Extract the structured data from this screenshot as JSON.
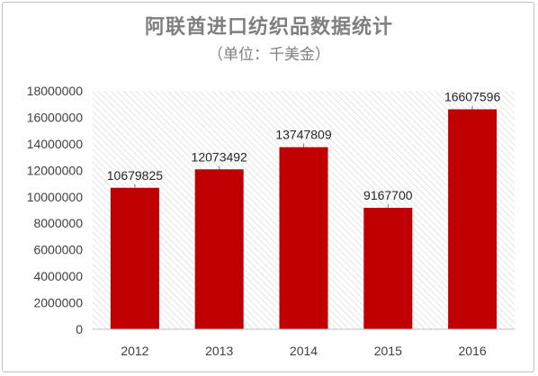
{
  "chart_data": {
    "type": "bar",
    "title": "阿联酋进口纺织品数据统计",
    "subtitle": "（单位：千美金）",
    "categories": [
      "2012",
      "2013",
      "2014",
      "2015",
      "2016"
    ],
    "values": [
      10679825,
      12073492,
      13747809,
      9167700,
      16607596
    ],
    "ylim": [
      0,
      18000000
    ],
    "yticks": [
      0,
      2000000,
      4000000,
      6000000,
      8000000,
      10000000,
      12000000,
      14000000,
      16000000,
      18000000
    ],
    "bar_color": "#c00000",
    "plot_background": "hatched",
    "data_labels": true
  }
}
